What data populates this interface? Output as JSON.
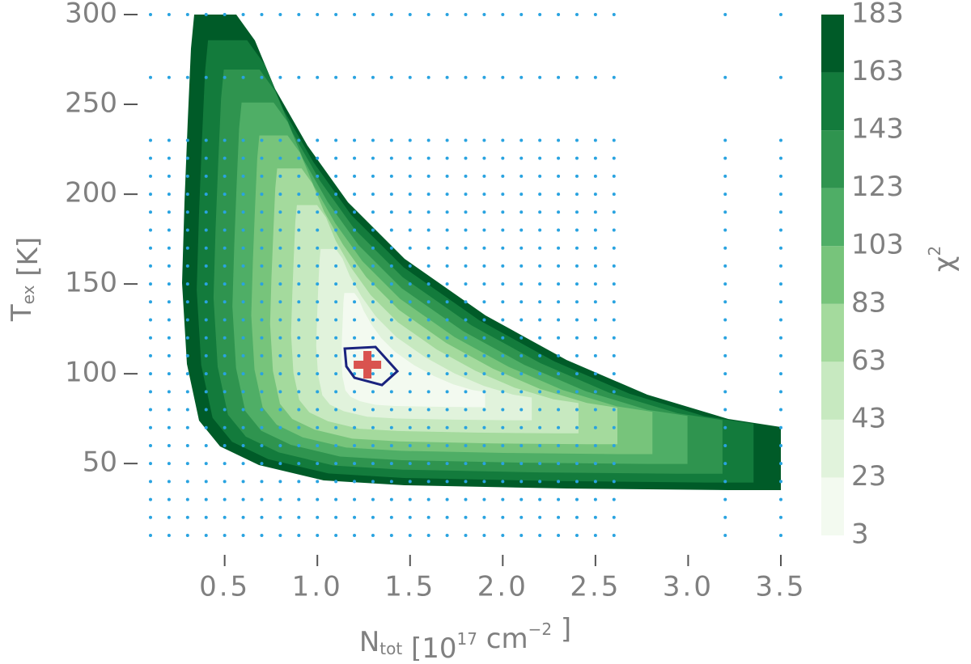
{
  "chart_data": {
    "type": "contour",
    "xlabel": [
      {
        "text": "N",
        "style": "normal"
      },
      {
        "text": "tot",
        "style": "sub"
      },
      {
        "text": " [10",
        "style": "normal"
      },
      {
        "text": "17",
        "style": "sup"
      },
      {
        "text": " cm",
        "style": "normal"
      },
      {
        "text": "−2",
        "style": "sup"
      },
      {
        "text": " ]",
        "style": "normal"
      }
    ],
    "ylabel": [
      {
        "text": "T",
        "style": "normal"
      },
      {
        "text": "ex",
        "style": "sub"
      },
      {
        "text": " [K]",
        "style": "normal"
      }
    ],
    "colorbar_label": [
      {
        "text": "χ",
        "style": "normal"
      },
      {
        "text": "2",
        "style": "sup"
      }
    ],
    "xlim": [
      0.1,
      3.5
    ],
    "xticks": [
      0.5,
      {
        "value": 1,
        "label": "1.0"
      },
      1.5,
      {
        "value": 2,
        "label": "2.0"
      },
      2.5,
      {
        "value": 3,
        "label": "3.0"
      },
      3.5
    ],
    "ylim": [
      10,
      300
    ],
    "yticks": [
      50,
      100,
      150,
      200,
      250,
      300
    ],
    "levels": [
      3,
      23,
      43,
      63,
      83,
      103,
      123,
      143,
      163,
      183
    ],
    "colors": [
      "#f3faf0",
      "#e1f3dc",
      "#c7e9c0",
      "#a4da9d",
      "#77c47b",
      "#4fae66",
      "#2f944f",
      "#137b3c",
      "#005b28"
    ],
    "best_fit": {
      "x": 1.27,
      "y": 105,
      "color": "#d9534f"
    },
    "confidence_color": "#1a237e",
    "sample_grid": {
      "color": "#29a3e0",
      "x": [
        0.1,
        0.2,
        0.3,
        0.4,
        0.5,
        0.6,
        0.7,
        0.8,
        0.9,
        1.0,
        1.1,
        1.2,
        1.3,
        1.4,
        1.5,
        1.6,
        1.7,
        1.8,
        1.9,
        2.0,
        2.1,
        2.2,
        2.3,
        2.4,
        2.5,
        2.6,
        3.2,
        3.5
      ],
      "y": [
        10,
        20,
        30,
        40,
        50,
        60,
        70,
        80,
        90,
        100,
        110,
        120,
        130,
        140,
        150,
        160,
        170,
        180,
        190,
        200,
        210,
        220,
        230,
        265,
        300
      ]
    }
  }
}
